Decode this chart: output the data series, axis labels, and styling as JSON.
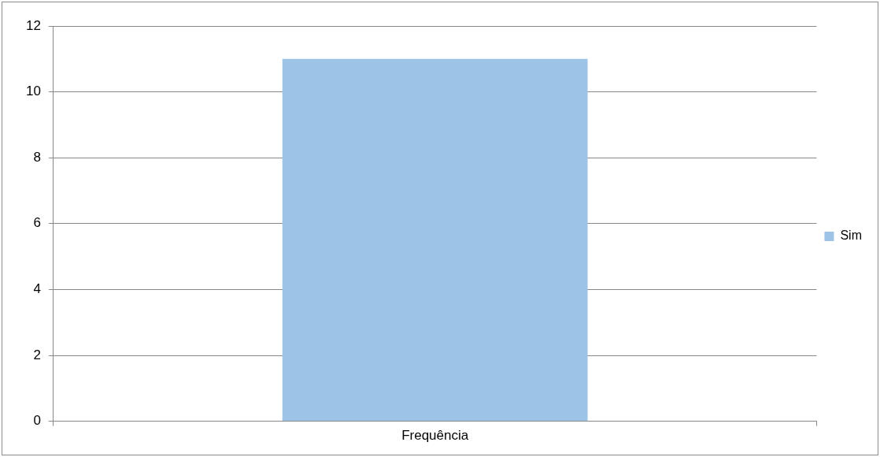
{
  "chart_data": {
    "type": "bar",
    "categories": [
      "Frequência"
    ],
    "series": [
      {
        "name": "Sim",
        "color": "#9dc3e6",
        "values": [
          11
        ]
      }
    ],
    "ylim": [
      0,
      12
    ],
    "yticks": [
      0,
      2,
      4,
      6,
      8,
      10,
      12
    ],
    "grid": "y",
    "legend": "right"
  }
}
